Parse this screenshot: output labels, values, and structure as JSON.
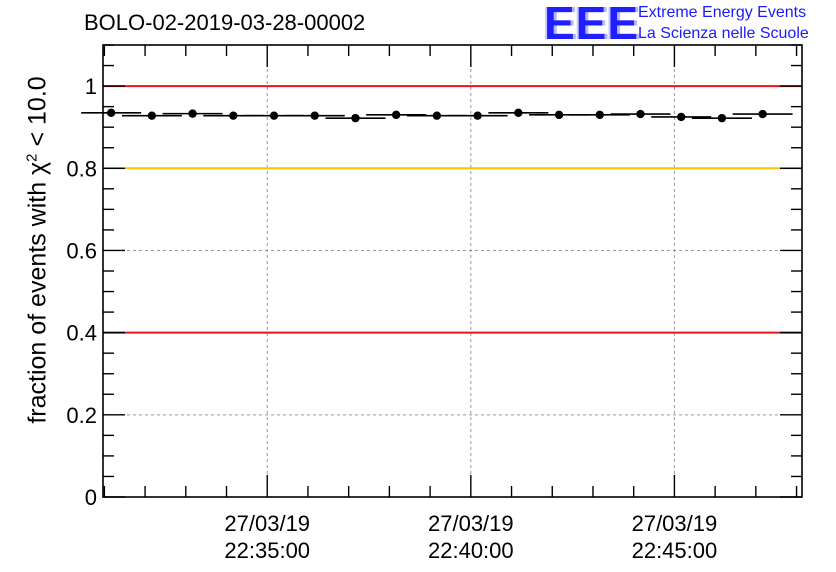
{
  "chart_data": {
    "type": "scatter",
    "title": "BOLO-02-2019-03-28-00002",
    "ylabel_text": "fraction of events with χ",
    "ylabel_sup": "2",
    "ylabel_suffix": " < 10.0",
    "ylim": [
      0,
      1.1
    ],
    "yticks": [
      {
        "value": 0,
        "label": "0"
      },
      {
        "value": 0.2,
        "label": "0.2"
      },
      {
        "value": 0.4,
        "label": "0.4"
      },
      {
        "value": 0.6,
        "label": "0.6"
      },
      {
        "value": 0.8,
        "label": "0.8"
      },
      {
        "value": 1,
        "label": "1"
      }
    ],
    "xlim": [
      "22:30:58",
      "22:48:08"
    ],
    "xticks": [
      {
        "time": "22:35:00",
        "date_label": "27/03/19",
        "time_label": "22:35:00"
      },
      {
        "time": "22:40:00",
        "date_label": "27/03/19",
        "time_label": "22:40:00"
      },
      {
        "time": "22:45:00",
        "date_label": "27/03/19",
        "time_label": "22:45:00"
      }
    ],
    "grid": true,
    "reference_lines": [
      {
        "y": 1.0,
        "color": "#e8141b"
      },
      {
        "y": 0.8,
        "color": "#ffc000"
      },
      {
        "y": 0.4,
        "color": "#e8141b"
      }
    ],
    "series": [
      {
        "color": "#000000",
        "points": [
          {
            "x": "22:31:10",
            "y": 0.935
          },
          {
            "x": "22:32:10",
            "y": 0.928
          },
          {
            "x": "22:33:10",
            "y": 0.933
          },
          {
            "x": "22:34:10",
            "y": 0.928
          },
          {
            "x": "22:35:10",
            "y": 0.928
          },
          {
            "x": "22:36:10",
            "y": 0.928
          },
          {
            "x": "22:37:10",
            "y": 0.922
          },
          {
            "x": "22:38:10",
            "y": 0.93
          },
          {
            "x": "22:39:10",
            "y": 0.928
          },
          {
            "x": "22:40:10",
            "y": 0.928
          },
          {
            "x": "22:41:10",
            "y": 0.935
          },
          {
            "x": "22:42:10",
            "y": 0.93
          },
          {
            "x": "22:43:10",
            "y": 0.93
          },
          {
            "x": "22:44:10",
            "y": 0.932
          },
          {
            "x": "22:45:10",
            "y": 0.925
          },
          {
            "x": "22:46:10",
            "y": 0.922
          },
          {
            "x": "22:47:10",
            "y": 0.932
          }
        ]
      }
    ]
  },
  "logo": {
    "mark": "EEE",
    "line1": "Extreme Energy Events",
    "line2": "La Scienza nelle Scuole"
  }
}
